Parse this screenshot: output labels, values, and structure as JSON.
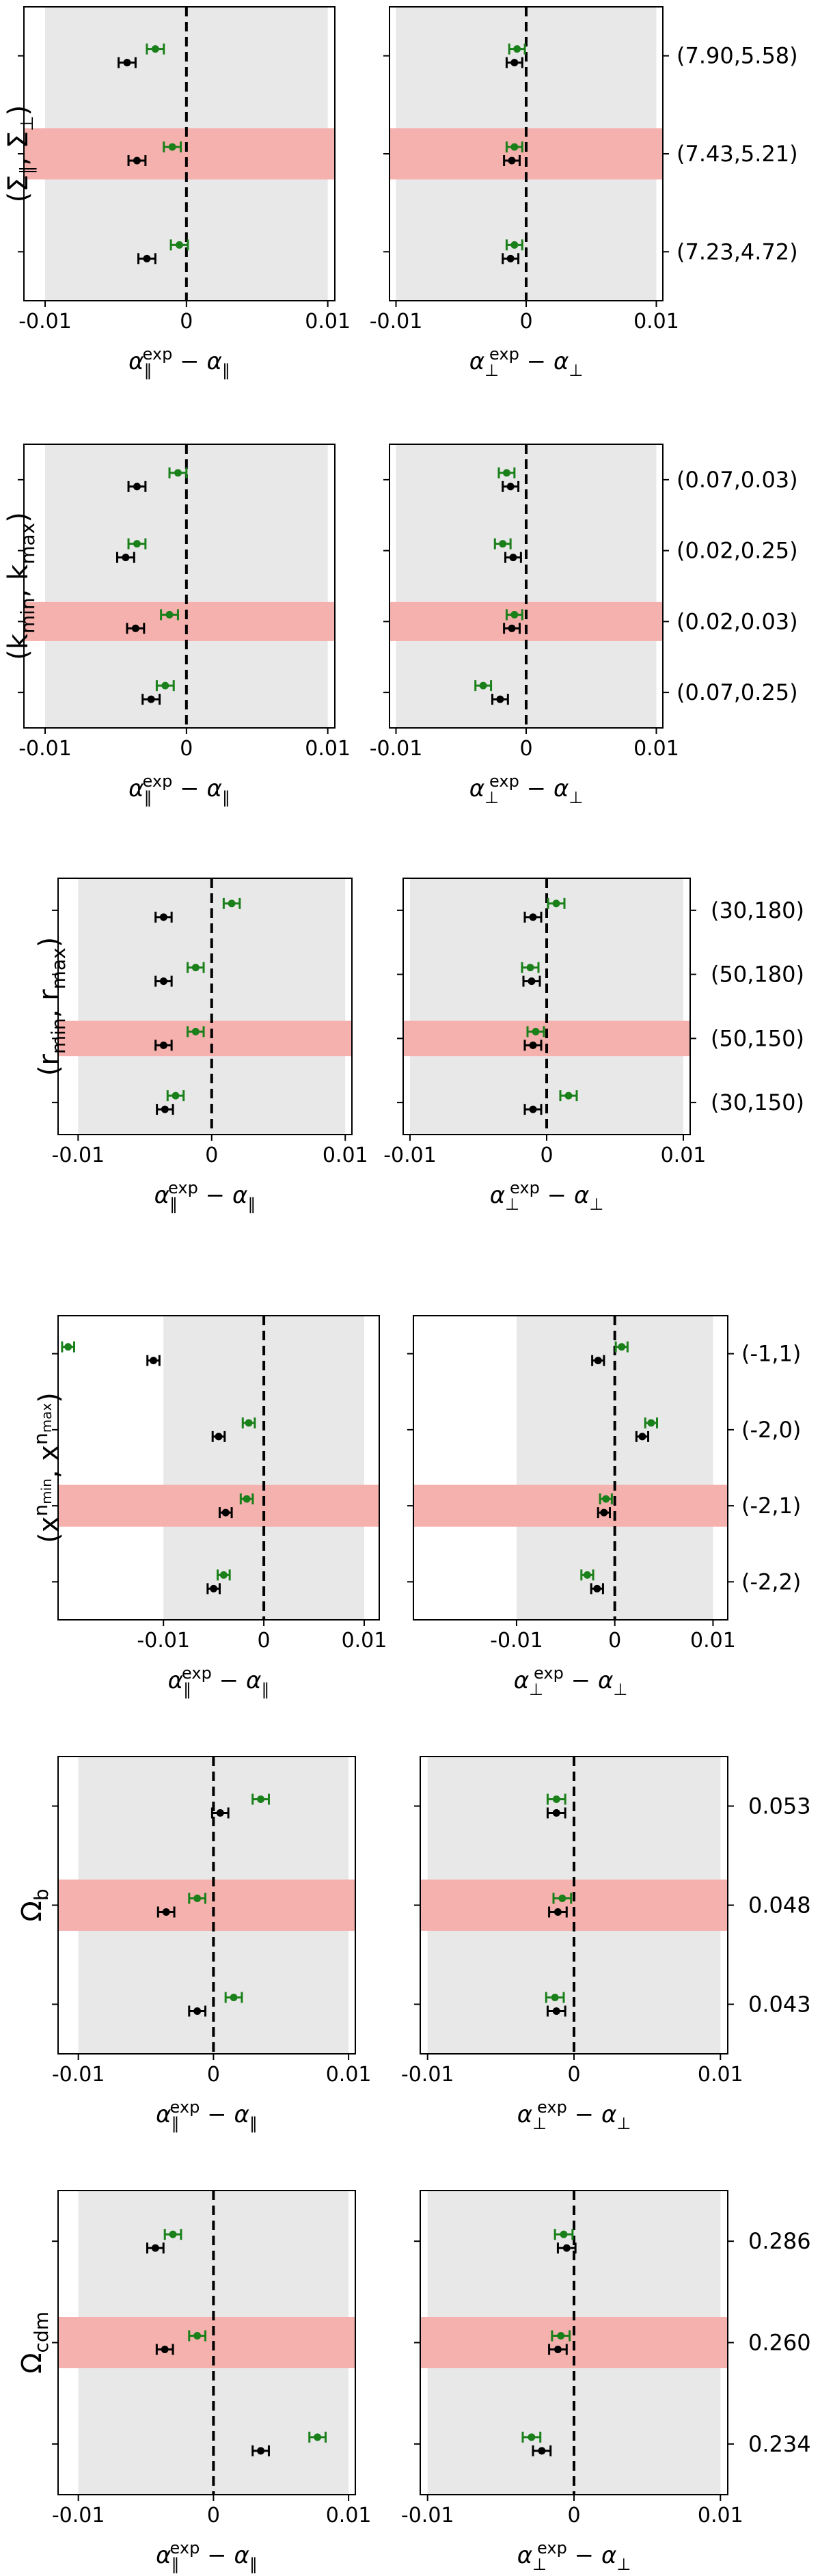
{
  "figure": {
    "xlabel_left": "α_∥^exp − α_∥",
    "xlabel_right": "α_⊥^exp − α_⊥",
    "xticks": [
      "-0.01",
      "0",
      "0.01"
    ],
    "colors": {
      "black": "#000000",
      "green": "#1a801a",
      "highlight": "#f4b1ad",
      "shade": "#e8e8e8"
    }
  },
  "chart_data": [
    {
      "type": "scatter",
      "panel_id": "sigma",
      "ylabel": "(Σ∥, Σ⊥)",
      "xlim_left": [
        -0.0115,
        0.0105
      ],
      "xlim_right": [
        -0.0105,
        0.0105
      ],
      "highlight_index": 1,
      "rows": [
        {
          "label": "(7.90,5.58)",
          "left": {
            "black": -0.0042,
            "green": -0.0022
          },
          "right": {
            "black": -0.0009,
            "green": -0.0007
          }
        },
        {
          "label": "(7.43,5.21)",
          "left": {
            "black": -0.0035,
            "green": -0.001
          },
          "right": {
            "black": -0.0011,
            "green": -0.0009
          }
        },
        {
          "label": "(7.23,4.72)",
          "left": {
            "black": -0.0028,
            "green": -0.0005
          },
          "right": {
            "black": -0.0012,
            "green": -0.0009
          }
        }
      ]
    },
    {
      "type": "scatter",
      "panel_id": "k",
      "ylabel": "(k_min, k_max)",
      "xlim_left": [
        -0.0115,
        0.0105
      ],
      "xlim_right": [
        -0.0105,
        0.0105
      ],
      "highlight_index": 2,
      "rows": [
        {
          "label": "(0.07,0.03)",
          "left": {
            "black": -0.0035,
            "green": -0.0006
          },
          "right": {
            "black": -0.0012,
            "green": -0.0015
          }
        },
        {
          "label": "(0.02,0.25)",
          "left": {
            "black": -0.0043,
            "green": -0.0035
          },
          "right": {
            "black": -0.001,
            "green": -0.0018
          }
        },
        {
          "label": "(0.02,0.03)",
          "left": {
            "black": -0.0036,
            "green": -0.0012
          },
          "right": {
            "black": -0.0011,
            "green": -0.0009
          }
        },
        {
          "label": "(0.07,0.25)",
          "left": {
            "black": -0.0025,
            "green": -0.0015
          },
          "right": {
            "black": -0.002,
            "green": -0.0033
          }
        }
      ]
    },
    {
      "type": "scatter",
      "panel_id": "r",
      "ylabel": "(r_min, r_max)",
      "xlim_left": [
        -0.0115,
        0.0105
      ],
      "xlim_right": [
        -0.0105,
        0.0105
      ],
      "highlight_index": 2,
      "rows": [
        {
          "label": "(30,180)",
          "left": {
            "black": -0.0036,
            "green": 0.0015
          },
          "right": {
            "black": -0.001,
            "green": 0.0007
          }
        },
        {
          "label": "(50,180)",
          "left": {
            "black": -0.0036,
            "green": -0.0012
          },
          "right": {
            "black": -0.0011,
            "green": -0.0012
          }
        },
        {
          "label": "(50,150)",
          "left": {
            "black": -0.0036,
            "green": -0.0012
          },
          "right": {
            "black": -0.001,
            "green": -0.0008
          }
        },
        {
          "label": "(30,150)",
          "left": {
            "black": -0.0035,
            "green": -0.0027
          },
          "right": {
            "black": -0.001,
            "green": 0.0016
          }
        }
      ]
    },
    {
      "type": "scatter",
      "panel_id": "x",
      "ylabel": "(x^n_min, x^n_max)",
      "xlim_left": [
        -0.0205,
        0.0115
      ],
      "xlim_right": [
        -0.0205,
        0.0115
      ],
      "highlight_index": 2,
      "rows": [
        {
          "label": "(-1,1)",
          "left": {
            "black": -0.011,
            "green": -0.0195
          },
          "right": {
            "black": -0.0017,
            "green": 0.0007
          }
        },
        {
          "label": "(-2,0)",
          "left": {
            "black": -0.0045,
            "green": -0.0015
          },
          "right": {
            "black": 0.0028,
            "green": 0.0037
          }
        },
        {
          "label": "(-2,1)",
          "left": {
            "black": -0.0038,
            "green": -0.0017
          },
          "right": {
            "black": -0.0011,
            "green": -0.0009
          }
        },
        {
          "label": "(-2,2)",
          "left": {
            "black": -0.005,
            "green": -0.004
          },
          "right": {
            "black": -0.0018,
            "green": -0.0028
          }
        }
      ]
    },
    {
      "type": "scatter",
      "panel_id": "omega_b",
      "ylabel": "Ω_b",
      "xlim_left": [
        -0.0115,
        0.0105
      ],
      "xlim_right": [
        -0.0105,
        0.0105
      ],
      "highlight_index": 1,
      "rows": [
        {
          "label": "0.053",
          "left": {
            "black": 0.0005,
            "green": 0.0035
          },
          "right": {
            "black": -0.0012,
            "green": -0.0012
          }
        },
        {
          "label": "0.048",
          "left": {
            "black": -0.0035,
            "green": -0.0012
          },
          "right": {
            "black": -0.0011,
            "green": -0.0008
          }
        },
        {
          "label": "0.043",
          "left": {
            "black": -0.0012,
            "green": 0.0015
          },
          "right": {
            "black": -0.0012,
            "green": -0.0013
          }
        }
      ]
    },
    {
      "type": "scatter",
      "panel_id": "omega_cdm",
      "ylabel": "Ω_cdm",
      "xlim_left": [
        -0.0115,
        0.0105
      ],
      "xlim_right": [
        -0.0105,
        0.0105
      ],
      "highlight_index": 1,
      "rows": [
        {
          "label": "0.286",
          "left": {
            "black": -0.0043,
            "green": -0.003
          },
          "right": {
            "black": -0.0005,
            "green": -0.0007
          }
        },
        {
          "label": "0.260",
          "left": {
            "black": -0.0036,
            "green": -0.0012
          },
          "right": {
            "black": -0.0011,
            "green": -0.0009
          }
        },
        {
          "label": "0.234",
          "left": {
            "black": 0.0035,
            "green": 0.0077
          },
          "right": {
            "black": -0.0022,
            "green": -0.0029
          }
        }
      ]
    }
  ]
}
